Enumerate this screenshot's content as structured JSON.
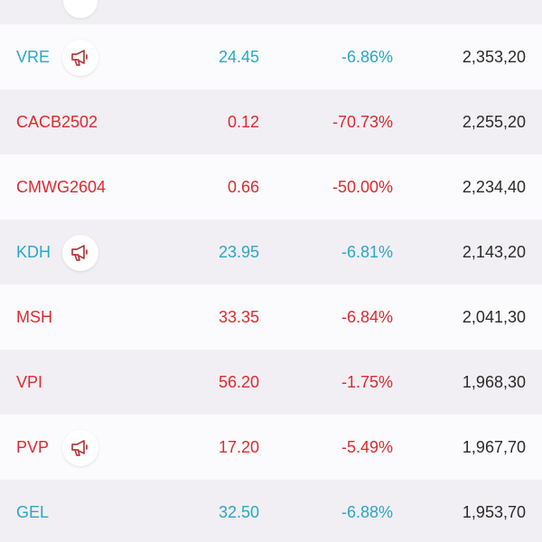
{
  "colors": {
    "down": "#de2a2f",
    "flat": "#2aa7c6",
    "volume": "#2b2b2b",
    "row_alt": "#f1eff3"
  },
  "rows": [
    {
      "symbol": "VRE",
      "price": "24.45",
      "change": "-6.86%",
      "volume": "2,353,20",
      "color": "blue",
      "announcement": true,
      "announcement_icon": "megaphone-icon"
    },
    {
      "symbol": "CACB2502",
      "price": "0.12",
      "change": "-70.73%",
      "volume": "2,255,20",
      "color": "red",
      "announcement": false
    },
    {
      "symbol": "CMWG2604",
      "price": "0.66",
      "change": "-50.00%",
      "volume": "2,234,40",
      "color": "red",
      "announcement": false
    },
    {
      "symbol": "KDH",
      "price": "23.95",
      "change": "-6.81%",
      "volume": "2,143,20",
      "color": "blue",
      "announcement": true,
      "announcement_icon": "megaphone-icon"
    },
    {
      "symbol": "MSH",
      "price": "33.35",
      "change": "-6.84%",
      "volume": "2,041,30",
      "color": "red",
      "announcement": false
    },
    {
      "symbol": "VPI",
      "price": "56.20",
      "change": "-1.75%",
      "volume": "1,968,30",
      "color": "red",
      "announcement": false
    },
    {
      "symbol": "PVP",
      "price": "17.20",
      "change": "-5.49%",
      "volume": "1,967,70",
      "color": "red",
      "announcement": true,
      "announcement_icon": "megaphone-icon"
    },
    {
      "symbol": "GEL",
      "price": "32.50",
      "change": "-6.88%",
      "volume": "1,953,70",
      "color": "blue",
      "announcement": false
    }
  ]
}
